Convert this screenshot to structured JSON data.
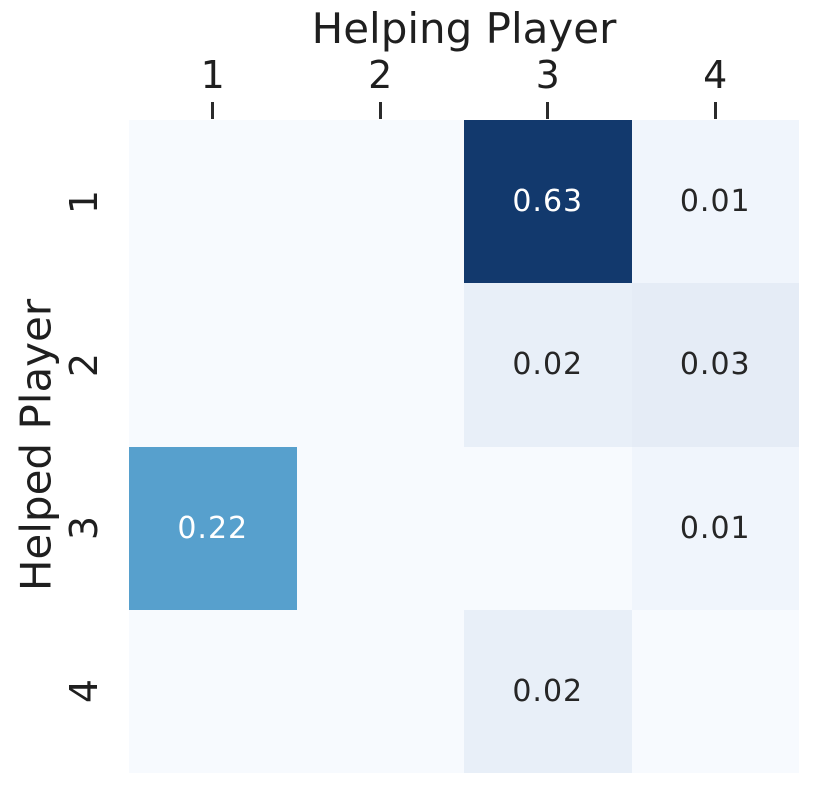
{
  "chart_data": {
    "type": "heatmap",
    "title": "",
    "xlabel": "Helping Player",
    "ylabel": "Helped Player",
    "x_tick_labels": [
      "1",
      "2",
      "3",
      "4"
    ],
    "y_tick_labels": [
      "1",
      "2",
      "3",
      "4"
    ],
    "colormap": "Blues",
    "legend": "none",
    "grid": {
      "rows": 4,
      "cols": 4
    },
    "values": [
      [
        null,
        null,
        0.63,
        0.01
      ],
      [
        null,
        null,
        0.02,
        0.03
      ],
      [
        0.22,
        null,
        null,
        0.01
      ],
      [
        null,
        null,
        0.02,
        null
      ]
    ],
    "annotations": [
      [
        "",
        "",
        "0.63",
        "0.01"
      ],
      [
        "",
        "",
        "0.02",
        "0.03"
      ],
      [
        "0.22",
        "",
        "",
        "0.01"
      ],
      [
        "",
        "",
        "0.02",
        ""
      ]
    ],
    "cell_colors": [
      [
        "#f7fafe",
        "#f7fafe",
        "#12396d",
        "#f0f5fc"
      ],
      [
        "#f7fafe",
        "#f7fafe",
        "#e8eff8",
        "#e5ecf6"
      ],
      [
        "#57a0cd",
        "#f7fafe",
        "#f7fafe",
        "#f0f5fc"
      ],
      [
        "#f7fafe",
        "#f7fafe",
        "#e8eff8",
        "#f7fafe"
      ]
    ],
    "text_colors": [
      [
        "#262626",
        "#262626",
        "#ffffff",
        "#262626"
      ],
      [
        "#262626",
        "#262626",
        "#262626",
        "#262626"
      ],
      [
        "#ffffff",
        "#262626",
        "#262626",
        "#262626"
      ],
      [
        "#262626",
        "#262626",
        "#262626",
        "#262626"
      ]
    ],
    "colors": {
      "background": "#ffffff",
      "axis_text": "#1f1f1f",
      "tick_mark": "#2b2b2b",
      "annotation_on_dark": "#ffffff",
      "annotation_on_light": "#262626",
      "cmap_low": "#f7fafe",
      "cmap_high": "#12396d"
    },
    "tick_mark_x_centers": [
      212.75,
      380.25,
      547.75,
      715.25
    ],
    "row_y_centers": [
      202,
      365,
      528,
      691
    ]
  }
}
